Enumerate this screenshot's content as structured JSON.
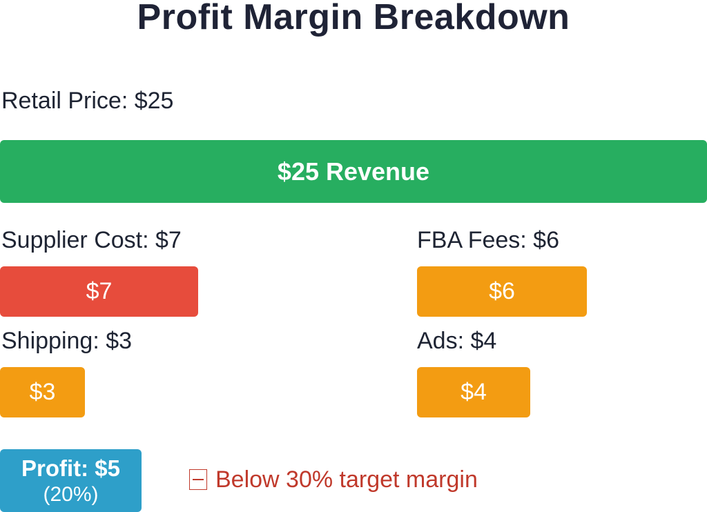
{
  "chart_data": {
    "type": "bar",
    "title": "Profit Margin Breakdown",
    "retail_label": "Retail Price: $25",
    "revenue": {
      "label": "$25 Revenue",
      "value": 25,
      "color": "#27ae60"
    },
    "costs": [
      {
        "name": "Supplier Cost",
        "label": "Supplier Cost: $7",
        "bar_label": "$7",
        "value": 7,
        "color": "#e74c3c"
      },
      {
        "name": "FBA Fees",
        "label": "FBA Fees: $6",
        "bar_label": "$6",
        "value": 6,
        "color": "#f39c12"
      },
      {
        "name": "Shipping",
        "label": "Shipping: $3",
        "bar_label": "$3",
        "value": 3,
        "color": "#f39c12"
      },
      {
        "name": "Ads",
        "label": "Ads: $4",
        "bar_label": "$4",
        "value": 4,
        "color": "#f39c12"
      }
    ],
    "profit": {
      "label": "Profit: $5",
      "percent_label": "(20%)",
      "value": 5,
      "percent": 20,
      "color": "#2e9fc9"
    },
    "warning": {
      "text": "Below 30% target margin",
      "color": "#c0392b",
      "icon": "warning-icon"
    }
  }
}
